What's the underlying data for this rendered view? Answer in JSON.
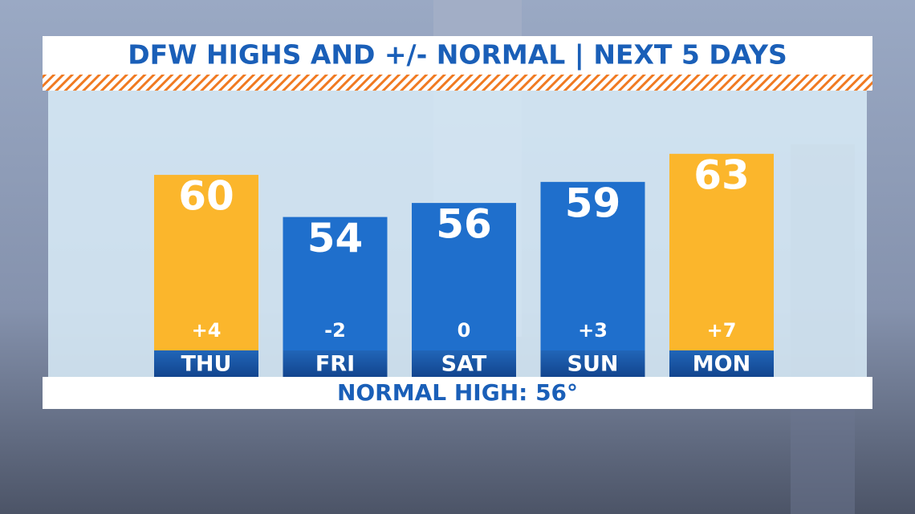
{
  "chart_data": {
    "type": "bar",
    "title": "DFW HIGHS AND +/- NORMAL | NEXT 5 DAYS",
    "categories": [
      "THU",
      "FRI",
      "SAT",
      "SUN",
      "MON"
    ],
    "values": [
      60,
      54,
      56,
      59,
      63
    ],
    "colors": [
      "#fbb62c",
      "#1f6fcc",
      "#1f6fcc",
      "#1f6fcc",
      "#fbb62c"
    ],
    "departures": {
      "values": [
        4,
        -2,
        0,
        3,
        7
      ],
      "value_labels": [
        "+4",
        "-2",
        "0",
        "+3",
        "+7"
      ]
    },
    "ylim": [
      35,
      72
    ],
    "footer": "NORMAL HIGH: 56°"
  }
}
